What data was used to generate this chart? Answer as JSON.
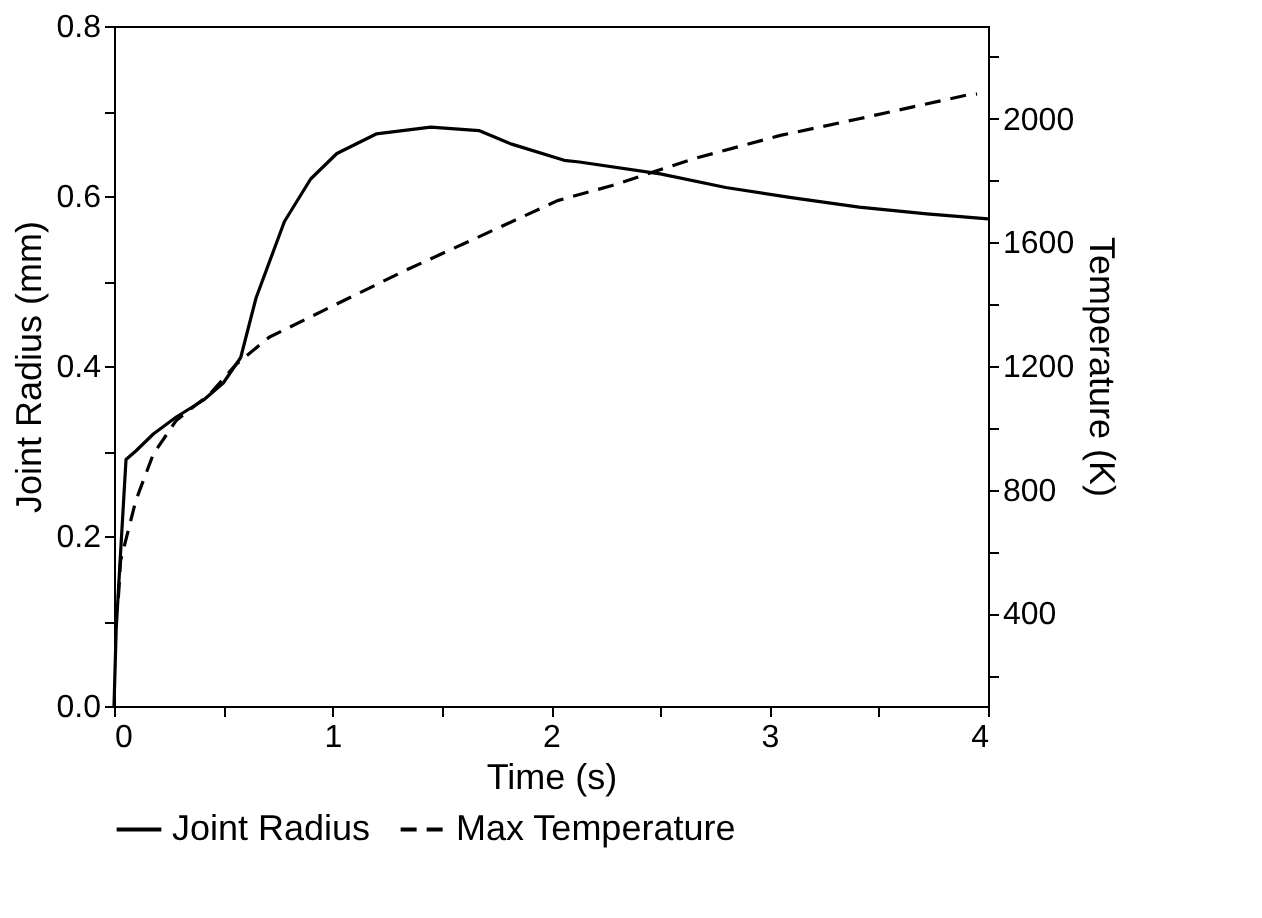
{
  "chart_data": {
    "type": "line",
    "xlabel": "Time (s)",
    "ylabel": "Joint Radius (mm)",
    "y2label": "Temperature (K)",
    "xlim": [
      0,
      4
    ],
    "xticks": [
      0,
      {
        "value": 0.5,
        "label": null
      },
      1,
      {
        "value": 1.5,
        "label": null
      },
      2,
      {
        "value": 2.5,
        "label": null
      },
      3,
      {
        "value": 3.5,
        "label": null
      },
      4
    ],
    "ylim": [
      0,
      0.8
    ],
    "yticks": [
      {
        "value": 0,
        "label": "0.0"
      },
      {
        "value": 0.1,
        "label": null
      },
      0.2,
      {
        "value": 0.3,
        "label": null
      },
      0.4,
      {
        "value": 0.5,
        "label": null
      },
      0.6,
      {
        "value": 0.7,
        "label": null
      },
      0.8
    ],
    "y2lim": [
      100,
      2300
    ],
    "y2ticks": [
      {
        "value": 200,
        "label": null
      },
      400,
      {
        "value": 600,
        "label": null
      },
      800,
      {
        "value": 1000,
        "label": null
      },
      1200,
      {
        "value": 1400,
        "label": null
      },
      1600,
      {
        "value": 1800,
        "label": null
      },
      2000,
      {
        "value": 2200,
        "label": null
      }
    ],
    "legend": "bottom",
    "grid": false,
    "series": [
      {
        "name": "Joint Radius",
        "color": "#000000",
        "line_style": "solid",
        "x": [
          0,
          0.01,
          0.03,
          0.055,
          0.1,
          0.18,
          0.285,
          0.41,
          0.5,
          0.58,
          0.65,
          0.78,
          0.9,
          1.02,
          1.2,
          1.45,
          1.67,
          1.82,
          2.06,
          2.13,
          2.5,
          2.8,
          3.1,
          3.41,
          3.72,
          4.0
        ],
        "values": [
          0.0,
          0.09,
          0.18,
          0.29,
          0.3,
          0.32,
          0.34,
          0.36,
          0.38,
          0.41,
          0.48,
          0.57,
          0.62,
          0.65,
          0.673,
          0.681,
          0.677,
          0.661,
          0.642,
          0.64,
          0.626,
          0.61,
          0.598,
          0.587,
          0.579,
          0.573
        ]
      },
      {
        "name": "Max Temperature",
        "color": "#000000",
        "line_style": "dashed",
        "axis": "y2",
        "x": [
          0.02,
          0.03,
          0.1,
          0.18,
          0.285,
          0.44,
          0.56,
          0.71,
          0.96,
          1.33,
          1.63,
          2.03,
          2.28,
          2.65,
          3.05,
          3.41,
          3.9,
          3.95
        ],
        "values": [
          450,
          570,
          765,
          915,
          1024,
          1110,
          1206,
          1293,
          1380,
          1508,
          1605,
          1735,
          1784,
          1870,
          1946,
          2000,
          2076,
          2080
        ]
      }
    ]
  }
}
